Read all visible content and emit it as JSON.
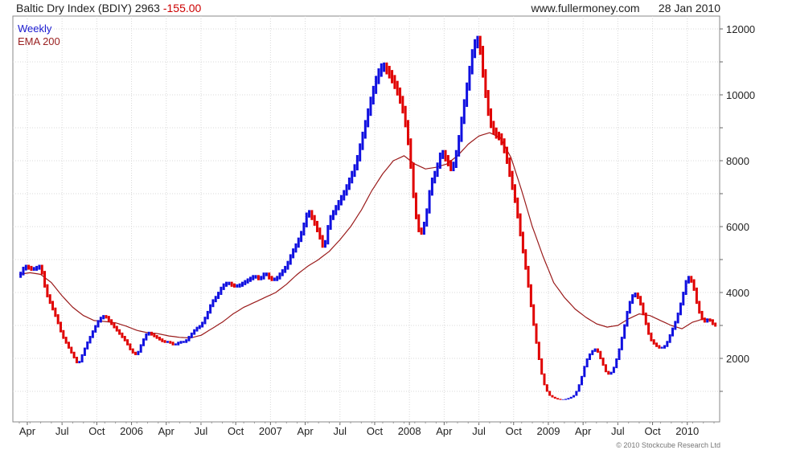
{
  "header": {
    "symbol": "Baltic Dry Index (BDIY) 2963",
    "change": "-155.00",
    "site": "www.fullermoney.com",
    "date": "28 Jan 2010"
  },
  "copyright": "© 2010 Stockcube Research Ltd",
  "chart_data": {
    "type": "line",
    "legend": [
      "Weekly",
      "EMA 200"
    ],
    "legend_position": "top-left",
    "grid": true,
    "ylim": [
      0,
      12000
    ],
    "yticks": [
      2000,
      4000,
      6000,
      8000,
      10000,
      12000
    ],
    "xlim": [
      0,
      260
    ],
    "xticks": [
      {
        "label": "Apr",
        "x": 3
      },
      {
        "label": "Jul",
        "x": 16
      },
      {
        "label": "Oct",
        "x": 29
      },
      {
        "label": "2006",
        "x": 42
      },
      {
        "label": "Apr",
        "x": 55
      },
      {
        "label": "Jul",
        "x": 68
      },
      {
        "label": "Oct",
        "x": 81
      },
      {
        "label": "2007",
        "x": 94
      },
      {
        "label": "Apr",
        "x": 107
      },
      {
        "label": "Jul",
        "x": 120
      },
      {
        "label": "Oct",
        "x": 133
      },
      {
        "label": "2008",
        "x": 146
      },
      {
        "label": "Apr",
        "x": 159
      },
      {
        "label": "Jul",
        "x": 172
      },
      {
        "label": "Oct",
        "x": 185
      },
      {
        "label": "2009",
        "x": 198
      },
      {
        "label": "Apr",
        "x": 211
      },
      {
        "label": "Jul",
        "x": 224
      },
      {
        "label": "Oct",
        "x": 237
      },
      {
        "label": "2010",
        "x": 250
      }
    ],
    "series": [
      {
        "name": "Weekly",
        "color_up": "#1010e0",
        "color_down": "#e00000",
        "anchors": [
          [
            0,
            4500
          ],
          [
            2,
            4800
          ],
          [
            5,
            4700
          ],
          [
            8,
            4800
          ],
          [
            10,
            4000
          ],
          [
            12,
            3600
          ],
          [
            14,
            3200
          ],
          [
            16,
            2700
          ],
          [
            18,
            2400
          ],
          [
            20,
            2100
          ],
          [
            22,
            1800
          ],
          [
            25,
            2400
          ],
          [
            28,
            2900
          ],
          [
            30,
            3200
          ],
          [
            32,
            3300
          ],
          [
            34,
            3100
          ],
          [
            36,
            2900
          ],
          [
            38,
            2700
          ],
          [
            40,
            2500
          ],
          [
            42,
            2200
          ],
          [
            44,
            2100
          ],
          [
            46,
            2500
          ],
          [
            48,
            2800
          ],
          [
            50,
            2700
          ],
          [
            52,
            2600
          ],
          [
            54,
            2500
          ],
          [
            56,
            2500
          ],
          [
            58,
            2400
          ],
          [
            60,
            2500
          ],
          [
            62,
            2500
          ],
          [
            64,
            2700
          ],
          [
            66,
            2900
          ],
          [
            68,
            3000
          ],
          [
            70,
            3300
          ],
          [
            72,
            3700
          ],
          [
            74,
            3900
          ],
          [
            76,
            4200
          ],
          [
            78,
            4300
          ],
          [
            80,
            4200
          ],
          [
            82,
            4200
          ],
          [
            84,
            4300
          ],
          [
            86,
            4400
          ],
          [
            88,
            4500
          ],
          [
            90,
            4400
          ],
          [
            92,
            4600
          ],
          [
            94,
            4400
          ],
          [
            96,
            4400
          ],
          [
            98,
            4600
          ],
          [
            100,
            4800
          ],
          [
            102,
            5200
          ],
          [
            104,
            5500
          ],
          [
            106,
            5900
          ],
          [
            108,
            6500
          ],
          [
            110,
            6200
          ],
          [
            112,
            5800
          ],
          [
            114,
            5300
          ],
          [
            116,
            6200
          ],
          [
            118,
            6500
          ],
          [
            120,
            6800
          ],
          [
            122,
            7100
          ],
          [
            124,
            7500
          ],
          [
            126,
            7900
          ],
          [
            128,
            8600
          ],
          [
            130,
            9300
          ],
          [
            132,
            10000
          ],
          [
            134,
            10600
          ],
          [
            136,
            10900
          ],
          [
            138,
            10700
          ],
          [
            140,
            10400
          ],
          [
            142,
            10000
          ],
          [
            144,
            9400
          ],
          [
            146,
            8300
          ],
          [
            148,
            6500
          ],
          [
            150,
            5700
          ],
          [
            152,
            6200
          ],
          [
            154,
            7300
          ],
          [
            156,
            7700
          ],
          [
            158,
            8300
          ],
          [
            160,
            8000
          ],
          [
            162,
            7700
          ],
          [
            164,
            8400
          ],
          [
            166,
            9500
          ],
          [
            168,
            10500
          ],
          [
            170,
            11500
          ],
          [
            172,
            11700
          ],
          [
            174,
            10300
          ],
          [
            176,
            9200
          ],
          [
            178,
            8800
          ],
          [
            180,
            8700
          ],
          [
            182,
            8200
          ],
          [
            184,
            7400
          ],
          [
            186,
            6600
          ],
          [
            188,
            5500
          ],
          [
            190,
            4500
          ],
          [
            192,
            3300
          ],
          [
            194,
            2200
          ],
          [
            196,
            1300
          ],
          [
            198,
            900
          ],
          [
            200,
            800
          ],
          [
            202,
            750
          ],
          [
            204,
            750
          ],
          [
            206,
            800
          ],
          [
            208,
            900
          ],
          [
            210,
            1300
          ],
          [
            212,
            1900
          ],
          [
            214,
            2200
          ],
          [
            216,
            2300
          ],
          [
            218,
            1900
          ],
          [
            220,
            1500
          ],
          [
            222,
            1600
          ],
          [
            224,
            2100
          ],
          [
            226,
            2800
          ],
          [
            228,
            3600
          ],
          [
            230,
            4000
          ],
          [
            232,
            3800
          ],
          [
            234,
            3200
          ],
          [
            236,
            2600
          ],
          [
            238,
            2400
          ],
          [
            240,
            2300
          ],
          [
            242,
            2400
          ],
          [
            244,
            2800
          ],
          [
            246,
            3200
          ],
          [
            248,
            3800
          ],
          [
            250,
            4500
          ],
          [
            252,
            4300
          ],
          [
            254,
            3500
          ],
          [
            256,
            3100
          ],
          [
            258,
            3200
          ],
          [
            260,
            3000
          ]
        ]
      },
      {
        "name": "EMA 200",
        "color": "#9a1b1b",
        "anchors": [
          [
            0,
            4550
          ],
          [
            4,
            4600
          ],
          [
            8,
            4550
          ],
          [
            12,
            4300
          ],
          [
            16,
            3900
          ],
          [
            20,
            3550
          ],
          [
            24,
            3300
          ],
          [
            28,
            3150
          ],
          [
            32,
            3120
          ],
          [
            36,
            3080
          ],
          [
            40,
            2980
          ],
          [
            44,
            2850
          ],
          [
            48,
            2780
          ],
          [
            52,
            2750
          ],
          [
            56,
            2680
          ],
          [
            60,
            2640
          ],
          [
            64,
            2620
          ],
          [
            68,
            2700
          ],
          [
            72,
            2900
          ],
          [
            76,
            3100
          ],
          [
            80,
            3350
          ],
          [
            84,
            3550
          ],
          [
            88,
            3700
          ],
          [
            92,
            3850
          ],
          [
            96,
            4000
          ],
          [
            100,
            4250
          ],
          [
            104,
            4550
          ],
          [
            108,
            4800
          ],
          [
            112,
            5000
          ],
          [
            116,
            5250
          ],
          [
            120,
            5600
          ],
          [
            124,
            6000
          ],
          [
            128,
            6500
          ],
          [
            132,
            7100
          ],
          [
            136,
            7600
          ],
          [
            140,
            8000
          ],
          [
            144,
            8150
          ],
          [
            148,
            7900
          ],
          [
            152,
            7750
          ],
          [
            156,
            7800
          ],
          [
            160,
            7900
          ],
          [
            164,
            8150
          ],
          [
            168,
            8500
          ],
          [
            172,
            8750
          ],
          [
            176,
            8850
          ],
          [
            180,
            8700
          ],
          [
            184,
            8100
          ],
          [
            188,
            7100
          ],
          [
            192,
            6000
          ],
          [
            196,
            5100
          ],
          [
            200,
            4300
          ],
          [
            204,
            3850
          ],
          [
            208,
            3500
          ],
          [
            212,
            3250
          ],
          [
            216,
            3050
          ],
          [
            220,
            2950
          ],
          [
            224,
            3000
          ],
          [
            228,
            3200
          ],
          [
            232,
            3350
          ],
          [
            236,
            3300
          ],
          [
            240,
            3150
          ],
          [
            244,
            3000
          ],
          [
            248,
            2900
          ],
          [
            252,
            3100
          ],
          [
            256,
            3200
          ],
          [
            260,
            3150
          ]
        ]
      }
    ]
  }
}
